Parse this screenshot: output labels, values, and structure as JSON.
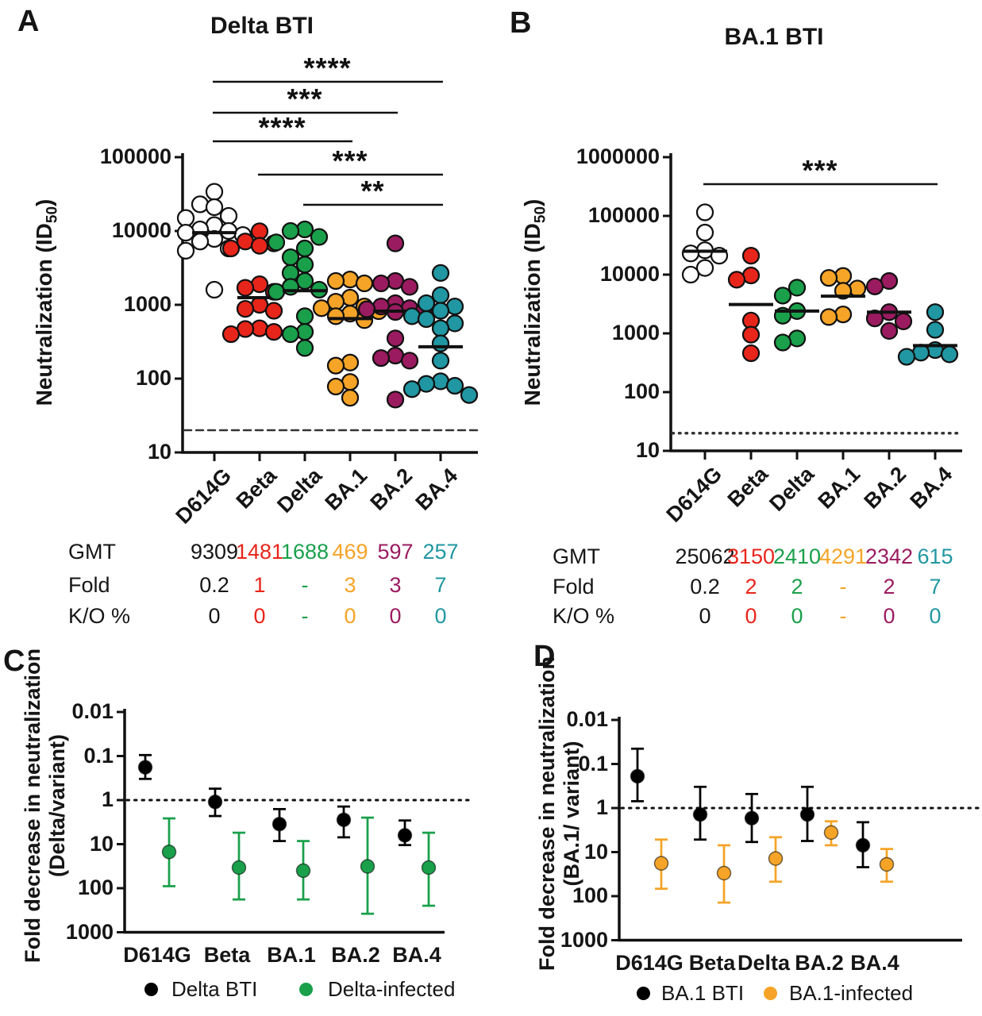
{
  "chart_data": [
    {
      "panel_letter": "A",
      "type": "scatter",
      "title": "Delta BTI",
      "ylabel": {
        "prefix": "Neutralization (ID",
        "sub": "50",
        "suffix": ")"
      },
      "yticks": [
        "100000",
        "10000",
        "1000",
        "100",
        "10"
      ],
      "categories": [
        "D614G",
        "Beta",
        "Delta",
        "BA.1",
        "BA.2",
        "BA.4"
      ],
      "group_colors": [
        "#ffffff",
        "#e8251a",
        "#1aa04b",
        "#f5a427",
        "#9b1b60",
        "#2097a3"
      ],
      "detection_limit": 20,
      "medians": [
        9500,
        1250,
        1550,
        650,
        820,
        270
      ],
      "points": [
        [
          34000,
          23000,
          21000,
          16000,
          15000,
          12000,
          10500,
          10000,
          9500,
          8800,
          7800,
          7200,
          5800,
          5400,
          1600
        ],
        [
          9900,
          7200,
          6800,
          6300,
          5800,
          1900,
          1700,
          1500,
          1000,
          880,
          830,
          480,
          470,
          430,
          400
        ],
        [
          10500,
          10000,
          8300,
          7000,
          5800,
          4400,
          3500,
          2700,
          2100,
          1750,
          1600,
          1500,
          700,
          430,
          400,
          260
        ],
        [
          2200,
          2100,
          1950,
          1250,
          1100,
          950,
          900,
          820,
          760,
          700,
          620,
          165,
          150,
          90,
          78,
          55
        ],
        [
          6800,
          2100,
          1950,
          1750,
          1050,
          950,
          900,
          870,
          830,
          800,
          350,
          205,
          190,
          175,
          52
        ],
        [
          2700,
          1350,
          1050,
          950,
          830,
          700,
          640,
          560,
          480,
          300,
          175,
          92,
          85,
          80,
          72,
          60
        ]
      ],
      "significance": [
        {
          "from": "D614G",
          "to": "BA.4",
          "label": "****"
        },
        {
          "from": "D614G",
          "to": "BA.2",
          "label": "***"
        },
        {
          "from": "D614G",
          "to": "BA.1",
          "label": "****"
        },
        {
          "from": "Beta",
          "to": "BA.4",
          "label": "***"
        },
        {
          "from": "Delta",
          "to": "BA.4",
          "label": "**"
        }
      ],
      "table": {
        "row_labels": [
          "GMT",
          "Fold",
          "K/O %"
        ],
        "rows": [
          [
            "9309",
            "1481",
            "1688",
            "469",
            "597",
            "257"
          ],
          [
            "0.2",
            "1",
            "-",
            "3",
            "3",
            "7"
          ],
          [
            "0",
            "0",
            "-",
            "0",
            "0",
            "0"
          ]
        ]
      }
    },
    {
      "panel_letter": "B",
      "type": "scatter",
      "title": "BA.1 BTI",
      "ylabel": {
        "prefix": "Neutralization (ID",
        "sub": "50",
        "suffix": ")"
      },
      "yticks": [
        "1000000",
        "100000",
        "10000",
        "1000",
        "100",
        "10"
      ],
      "categories": [
        "D614G",
        "Beta",
        "Delta",
        "BA.1",
        "BA.2",
        "BA.4"
      ],
      "group_colors": [
        "#ffffff",
        "#e8251a",
        "#1aa04b",
        "#f5a427",
        "#9b1b60",
        "#2097a3"
      ],
      "detection_limit": 20,
      "medians": [
        25000,
        3100,
        2400,
        4300,
        2300,
        620
      ],
      "points": [
        [
          115000,
          52000,
          26000,
          23000,
          21000,
          13000,
          10000
        ],
        [
          21000,
          9700,
          8200,
          1650,
          950,
          460
        ],
        [
          6000,
          4400,
          2400,
          2000,
          820,
          700
        ],
        [
          9500,
          8800,
          5800,
          5300,
          2100,
          1900
        ],
        [
          7800,
          6300,
          2300,
          1800,
          1600,
          1100
        ],
        [
          2300,
          1150,
          520,
          470,
          440,
          400
        ]
      ],
      "significance": [
        {
          "from": "D614G",
          "to": "BA.4",
          "label": "***"
        }
      ],
      "table": {
        "row_labels": [
          "GMT",
          "Fold",
          "K/O %"
        ],
        "rows": [
          [
            "25062",
            "3150",
            "2410",
            "4291",
            "2342",
            "615"
          ],
          [
            "0.2",
            "2",
            "2",
            "-",
            "2",
            "7"
          ],
          [
            "0",
            "0",
            "0",
            "-",
            "0",
            "0"
          ]
        ]
      }
    },
    {
      "panel_letter": "C",
      "type": "point_error",
      "ylabel_lines": [
        "Fold decrease in neutralization",
        "(Delta/variant)"
      ],
      "yticks": [
        "0.01",
        "0.1",
        "1",
        "10",
        "100",
        "1000"
      ],
      "categories": [
        "D614G",
        "Beta",
        "BA.1",
        "BA.2",
        "BA.4"
      ],
      "reference_line": 1,
      "series": [
        {
          "name": "Delta BTI",
          "color": "#000000",
          "values": [
            0.18,
            1.1,
            3.5,
            2.8,
            6.3
          ],
          "err_low": [
            0.095,
            0.55,
            1.6,
            1.4,
            2.9
          ],
          "err_high": [
            0.33,
            2.3,
            8.5,
            7.0,
            10.5
          ]
        },
        {
          "name": "Delta-infected",
          "color": "#1aa04b",
          "values": [
            15,
            34,
            40,
            32,
            34
          ],
          "err_low": [
            2.6,
            5.5,
            8.5,
            2.5,
            5.5
          ],
          "err_high": [
            90,
            180,
            180,
            380,
            250
          ]
        }
      ]
    },
    {
      "panel_letter": "D",
      "type": "point_error",
      "ylabel_lines": [
        "Fold decrease in neutralization",
        "(BA.1/ variant)"
      ],
      "yticks": [
        "0.01",
        "0.1",
        "1",
        "10",
        "100",
        "1000"
      ],
      "categories": [
        "D614G",
        "Beta",
        "Delta",
        "BA.2",
        "BA.4"
      ],
      "reference_line": 1,
      "series": [
        {
          "name": "BA.1 BTI",
          "color": "#000000",
          "values": [
            0.19,
            1.4,
            1.7,
            1.4,
            7.0
          ],
          "err_low": [
            0.045,
            0.33,
            0.48,
            0.33,
            2.1
          ],
          "err_high": [
            0.7,
            5.2,
            5.9,
            5.6,
            22
          ]
        },
        {
          "name": "BA.1-infected",
          "color": "#f5a427",
          "values": [
            18,
            30,
            14,
            3.6,
            19
          ],
          "err_low": [
            5.2,
            7.0,
            4.6,
            2.0,
            8.5
          ],
          "err_high": [
            68,
            140,
            47,
            7.0,
            47
          ]
        }
      ]
    }
  ]
}
